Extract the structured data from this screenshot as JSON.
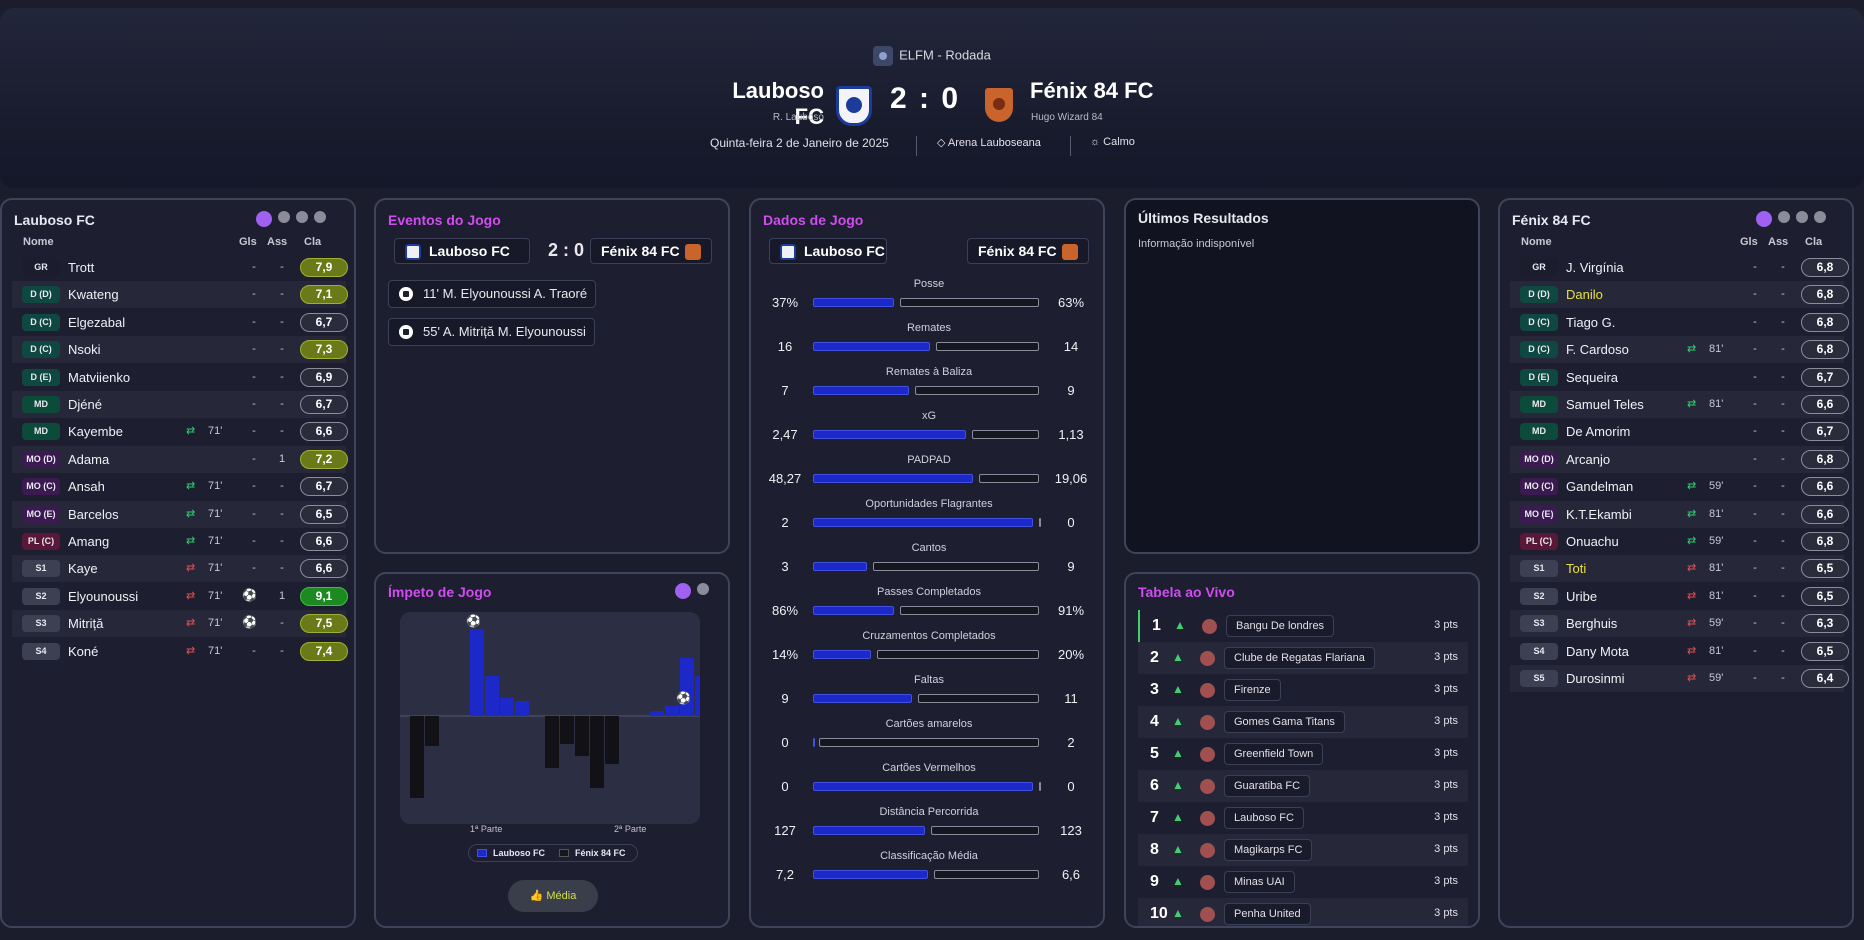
{
  "header": {
    "competition": "ELFM - Rodada",
    "home": {
      "name": "Lauboso FC",
      "manager": "R. Lauboso"
    },
    "away": {
      "name": "Fénix 84 FC",
      "manager": "Hugo Wizard 84"
    },
    "score": "2 : 0",
    "date": "Quinta-feira 2 de Janeiro de 2025",
    "stadium": "Arena Lauboseana",
    "weather": "Calmo"
  },
  "cols": {
    "name": "Nome",
    "gls": "Gls",
    "ass": "Ass",
    "cla": "Cla"
  },
  "home_players": [
    {
      "pos": "GR",
      "pc": "gr",
      "name": "Trott",
      "gls": "-",
      "ass": "-",
      "rating": "7,9",
      "rc": "g1"
    },
    {
      "pos": "D (D)",
      "pc": "d",
      "name": "Kwateng",
      "gls": "-",
      "ass": "-",
      "rating": "7,1",
      "rc": "g1"
    },
    {
      "pos": "D (C)",
      "pc": "d",
      "name": "Elgezabal",
      "gls": "-",
      "ass": "-",
      "rating": "6,7",
      "rc": ""
    },
    {
      "pos": "D (C)",
      "pc": "d",
      "name": "Nsoki",
      "gls": "-",
      "ass": "-",
      "rating": "7,3",
      "rc": "g1"
    },
    {
      "pos": "D (E)",
      "pc": "d",
      "name": "Matviienko",
      "gls": "-",
      "ass": "-",
      "rating": "6,9",
      "rc": ""
    },
    {
      "pos": "MD",
      "pc": "md",
      "name": "Djéné",
      "gls": "-",
      "ass": "-",
      "rating": "6,7",
      "rc": ""
    },
    {
      "pos": "MD",
      "pc": "md",
      "name": "Kayembe",
      "sub": "in",
      "min": "71'",
      "gls": "-",
      "ass": "-",
      "rating": "6,6",
      "rc": ""
    },
    {
      "pos": "MO (D)",
      "pc": "mo",
      "name": "Adama",
      "gls": "-",
      "ass": "1",
      "rating": "7,2",
      "rc": "g1"
    },
    {
      "pos": "MO (C)",
      "pc": "mo",
      "name": "Ansah",
      "sub": "in",
      "min": "71'",
      "gls": "-",
      "ass": "-",
      "rating": "6,7",
      "rc": ""
    },
    {
      "pos": "MO (E)",
      "pc": "mo",
      "name": "Barcelos",
      "sub": "in",
      "min": "71'",
      "gls": "-",
      "ass": "-",
      "rating": "6,5",
      "rc": ""
    },
    {
      "pos": "PL (C)",
      "pc": "pl",
      "name": "Amang",
      "sub": "in",
      "min": "71'",
      "gls": "-",
      "ass": "-",
      "rating": "6,6",
      "rc": ""
    },
    {
      "pos": "S1",
      "pc": "s",
      "name": "Kaye",
      "sub": "out",
      "min": "71'",
      "gls": "-",
      "ass": "-",
      "rating": "6,6",
      "rc": ""
    },
    {
      "pos": "S2",
      "pc": "s",
      "name": "Elyounoussi",
      "sub": "out",
      "min": "71'",
      "goal": true,
      "gls": "",
      "ass": "1",
      "rating": "9,1",
      "rc": "g2"
    },
    {
      "pos": "S3",
      "pc": "s",
      "name": "Mitriță",
      "sub": "out",
      "min": "71'",
      "goal": true,
      "gls": "",
      "ass": "-",
      "rating": "7,5",
      "rc": "g1"
    },
    {
      "pos": "S4",
      "pc": "s",
      "name": "Koné",
      "sub": "out",
      "min": "71'",
      "gls": "-",
      "ass": "-",
      "rating": "7,4",
      "rc": "g1"
    }
  ],
  "away_players": [
    {
      "pos": "GR",
      "pc": "gr",
      "name": "J. Virgínia",
      "gls": "-",
      "ass": "-",
      "rating": "6,8",
      "rc": ""
    },
    {
      "pos": "D (D)",
      "pc": "d",
      "name": "Danilo",
      "hl": true,
      "gls": "-",
      "ass": "-",
      "rating": "6,8",
      "rc": ""
    },
    {
      "pos": "D (C)",
      "pc": "d",
      "name": "Tiago G.",
      "gls": "-",
      "ass": "-",
      "rating": "6,8",
      "rc": ""
    },
    {
      "pos": "D (C)",
      "pc": "d",
      "name": "F. Cardoso",
      "sub": "in",
      "min": "81'",
      "gls": "-",
      "ass": "-",
      "rating": "6,8",
      "rc": ""
    },
    {
      "pos": "D (E)",
      "pc": "d",
      "name": "Sequeira",
      "gls": "-",
      "ass": "-",
      "rating": "6,7",
      "rc": ""
    },
    {
      "pos": "MD",
      "pc": "md",
      "name": "Samuel Teles",
      "sub": "in",
      "min": "81'",
      "gls": "-",
      "ass": "-",
      "rating": "6,6",
      "rc": ""
    },
    {
      "pos": "MD",
      "pc": "md",
      "name": "De Amorim",
      "gls": "-",
      "ass": "-",
      "rating": "6,7",
      "rc": ""
    },
    {
      "pos": "MO (D)",
      "pc": "mo",
      "name": "Arcanjo",
      "gls": "-",
      "ass": "-",
      "rating": "6,8",
      "rc": ""
    },
    {
      "pos": "MO (C)",
      "pc": "mo",
      "name": "Gandelman",
      "sub": "in",
      "min": "59'",
      "gls": "-",
      "ass": "-",
      "rating": "6,6",
      "rc": ""
    },
    {
      "pos": "MO (E)",
      "pc": "mo",
      "name": "K.T.Ekambi",
      "sub": "in",
      "min": "81'",
      "gls": "-",
      "ass": "-",
      "rating": "6,6",
      "rc": ""
    },
    {
      "pos": "PL (C)",
      "pc": "pl",
      "name": "Onuachu",
      "sub": "in",
      "min": "59'",
      "gls": "-",
      "ass": "-",
      "rating": "6,8",
      "rc": ""
    },
    {
      "pos": "S1",
      "pc": "s",
      "name": "Toti",
      "hl": true,
      "sub": "out",
      "min": "81'",
      "gls": "-",
      "ass": "-",
      "rating": "6,5",
      "rc": ""
    },
    {
      "pos": "S2",
      "pc": "s",
      "name": "Uribe",
      "sub": "out",
      "min": "81'",
      "gls": "-",
      "ass": "-",
      "rating": "6,5",
      "rc": ""
    },
    {
      "pos": "S3",
      "pc": "s",
      "name": "Berghuis",
      "sub": "out",
      "min": "59'",
      "gls": "-",
      "ass": "-",
      "rating": "6,3",
      "rc": ""
    },
    {
      "pos": "S4",
      "pc": "s",
      "name": "Dany Mota",
      "sub": "out",
      "min": "81'",
      "gls": "-",
      "ass": "-",
      "rating": "6,5",
      "rc": ""
    },
    {
      "pos": "S5",
      "pc": "s",
      "name": "Durosinmi",
      "sub": "out",
      "min": "59'",
      "gls": "-",
      "ass": "-",
      "rating": "6,4",
      "rc": ""
    }
  ],
  "events": {
    "title": "Eventos do Jogo",
    "home": "Lauboso FC",
    "away": "Fénix 84 FC",
    "score": "2 : 0",
    "items": [
      "11'  M. Elyounoussi  A. Traoré",
      "55'  A. Mitriță  M. Elyounoussi"
    ]
  },
  "momentum": {
    "title": "Ímpeto de Jogo",
    "first_half": "1ª Parte",
    "second_half": "2ª Parte",
    "legend_home": "Lauboso FC",
    "legend_away": "Fénix 84 FC",
    "button": "Média",
    "home_bars": [
      0,
      0,
      0,
      0,
      87,
      40,
      18,
      15,
      0,
      0,
      0,
      0,
      0,
      0,
      0,
      0,
      5,
      10,
      58,
      40,
      40,
      12,
      0
    ],
    "away_bars": [
      82,
      30,
      0,
      0,
      0,
      0,
      0,
      0,
      0,
      52,
      28,
      40,
      72,
      48,
      0,
      0,
      0,
      0,
      0,
      0,
      0,
      0,
      48
    ]
  },
  "stats": {
    "title": "Dados de Jogo",
    "home": "Lauboso FC",
    "away": "Fénix 84 FC",
    "rows": [
      {
        "label": "Posse",
        "h": "37%",
        "a": "63%",
        "hp": 0.37
      },
      {
        "label": "Remates",
        "h": "16",
        "a": "14",
        "hp": 0.53
      },
      {
        "label": "Remates à Baliza",
        "h": "7",
        "a": "9",
        "hp": 0.44
      },
      {
        "label": "xG",
        "h": "2,47",
        "a": "1,13",
        "hp": 0.69
      },
      {
        "label": "PADPAD",
        "h": "48,27",
        "a": "19,06",
        "hp": 0.72
      },
      {
        "label": "Oportunidades Flagrantes",
        "h": "2",
        "a": "0",
        "hp": 1
      },
      {
        "label": "Cantos",
        "h": "3",
        "a": "9",
        "hp": 0.25
      },
      {
        "label": "Passes Completados",
        "h": "86%",
        "a": "91%",
        "hp": 0.37
      },
      {
        "label": "Cruzamentos Completados",
        "h": "14%",
        "a": "20%",
        "hp": 0.27
      },
      {
        "label": "Faltas",
        "h": "9",
        "a": "11",
        "hp": 0.45
      },
      {
        "label": "Cartões amarelos",
        "h": "0",
        "a": "2",
        "hp": 0
      },
      {
        "label": "Cartões Vermelhos",
        "h": "0",
        "a": "0",
        "hp": 1
      },
      {
        "label": "Distância Percorrida",
        "h": "127",
        "a": "123",
        "hp": 0.51
      },
      {
        "label": "Classificação Média",
        "h": "7,2",
        "a": "6,6",
        "hp": 0.52
      }
    ]
  },
  "results": {
    "title": "Últimos Resultados",
    "empty": "Informação indisponível"
  },
  "table": {
    "title": "Tabela ao Vivo",
    "rows": [
      {
        "n": "1",
        "team": "Bangu De londres",
        "pts": "3 pts"
      },
      {
        "n": "2",
        "team": "Clube de Regatas Flariana",
        "pts": "3 pts"
      },
      {
        "n": "3",
        "team": "Firenze",
        "pts": "3 pts"
      },
      {
        "n": "4",
        "team": "Gomes Gama Titans",
        "pts": "3 pts"
      },
      {
        "n": "5",
        "team": "Greenfield Town",
        "pts": "3 pts"
      },
      {
        "n": "6",
        "team": "Guaratiba FC",
        "pts": "3 pts"
      },
      {
        "n": "7",
        "team": "Lauboso FC",
        "pts": "3 pts"
      },
      {
        "n": "8",
        "team": "Magikarps FC",
        "pts": "3 pts"
      },
      {
        "n": "9",
        "team": "Minas UAI",
        "pts": "3 pts"
      },
      {
        "n": "10",
        "team": "Penha United",
        "pts": "3 pts"
      }
    ]
  },
  "colors": {
    "accent": "#d04cf0",
    "home_bar": "#1c28c8",
    "away_bar": "#15161f"
  }
}
